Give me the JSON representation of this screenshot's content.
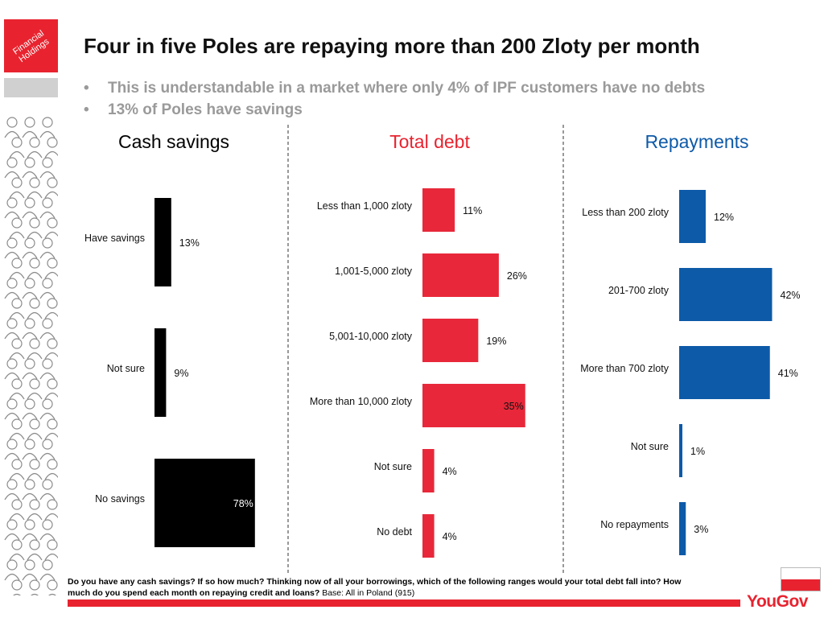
{
  "logo": {
    "text": "Financial Holdings"
  },
  "header": {
    "title": "Four in five Poles are repaying more than 200 Zloty per month",
    "bullets": [
      "This is understandable in a market where only 4% of IPF customers have no debts",
      "13% of Poles have savings"
    ]
  },
  "chart_data": [
    {
      "type": "bar",
      "title": "Cash savings",
      "color": "#000000",
      "title_color": "#000000",
      "categories": [
        "Have savings",
        "Not sure",
        "No savings"
      ],
      "values": [
        13,
        9,
        78
      ],
      "labels": [
        "13%",
        "9%",
        "78%"
      ],
      "unit": "%",
      "xlim": [
        0,
        100
      ]
    },
    {
      "type": "bar",
      "title": "Total debt",
      "color": "#e8283a",
      "title_color": "#e8232f",
      "categories": [
        "Less than 1,000 zloty",
        "1,001-5,000 zloty",
        "5,001-10,000 zloty",
        "More than 10,000 zloty",
        "Not sure",
        "No debt"
      ],
      "values": [
        11,
        26,
        19,
        35,
        4,
        4
      ],
      "labels": [
        "11%",
        "26%",
        "19%",
        "35%",
        "4%",
        "4%"
      ],
      "unit": "%",
      "xlim": [
        0,
        100
      ]
    },
    {
      "type": "bar",
      "title": "Repayments",
      "color": "#0d5aa8",
      "title_color": "#0d5aa8",
      "categories": [
        "Less than 200 zloty",
        "201-700 zloty",
        "More than 700 zloty",
        "Not sure",
        "No repayments"
      ],
      "values": [
        12,
        42,
        41,
        1,
        3
      ],
      "labels": [
        "12%",
        "42%",
        "41%",
        "1%",
        "3%"
      ],
      "unit": "%",
      "xlim": [
        0,
        100
      ]
    }
  ],
  "footer": {
    "question": "Do you have any cash savings? If so how much? Thinking now of all your borrowings, which of the following ranges would your total debt fall into? How much do you spend each month on repaying credit and loans?",
    "base": "Base: All in Poland (915)",
    "brand": "YouGov"
  }
}
